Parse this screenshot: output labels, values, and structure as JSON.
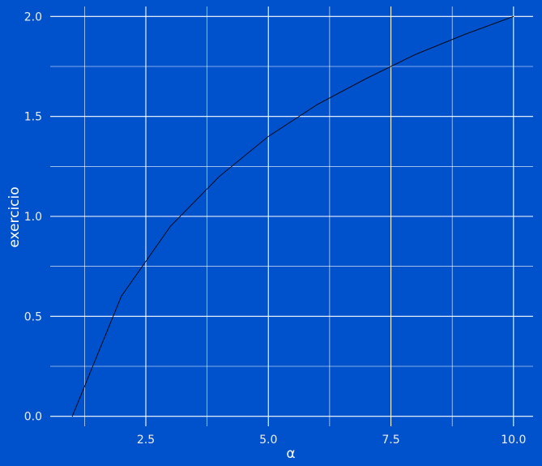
{
  "colors": {
    "background": "#0052cc",
    "grid": "#ffffff",
    "line": "#000000",
    "text": "#eeeeee"
  },
  "chart_data": {
    "type": "line",
    "title": "",
    "xlabel": "α",
    "ylabel": "exercicio",
    "xlim": [
      0.55,
      10.4
    ],
    "ylim": [
      -0.05,
      2.05
    ],
    "x_ticks": [
      2.5,
      5.0,
      7.5,
      10.0
    ],
    "x_tick_labels": [
      "2.5",
      "5.0",
      "7.5",
      "10.0"
    ],
    "y_ticks": [
      0.0,
      0.5,
      1.0,
      1.5,
      2.0
    ],
    "y_tick_labels": [
      "0.0",
      "0.5",
      "1.0",
      "1.5",
      "2.0"
    ],
    "grid": true,
    "legend": "none",
    "series": [
      {
        "x": [
          1,
          2,
          3,
          4,
          5,
          6,
          7,
          8,
          9,
          10
        ],
        "y": [
          0.0,
          0.6,
          0.95,
          1.2,
          1.4,
          1.56,
          1.69,
          1.81,
          1.91,
          2.0
        ]
      }
    ]
  }
}
